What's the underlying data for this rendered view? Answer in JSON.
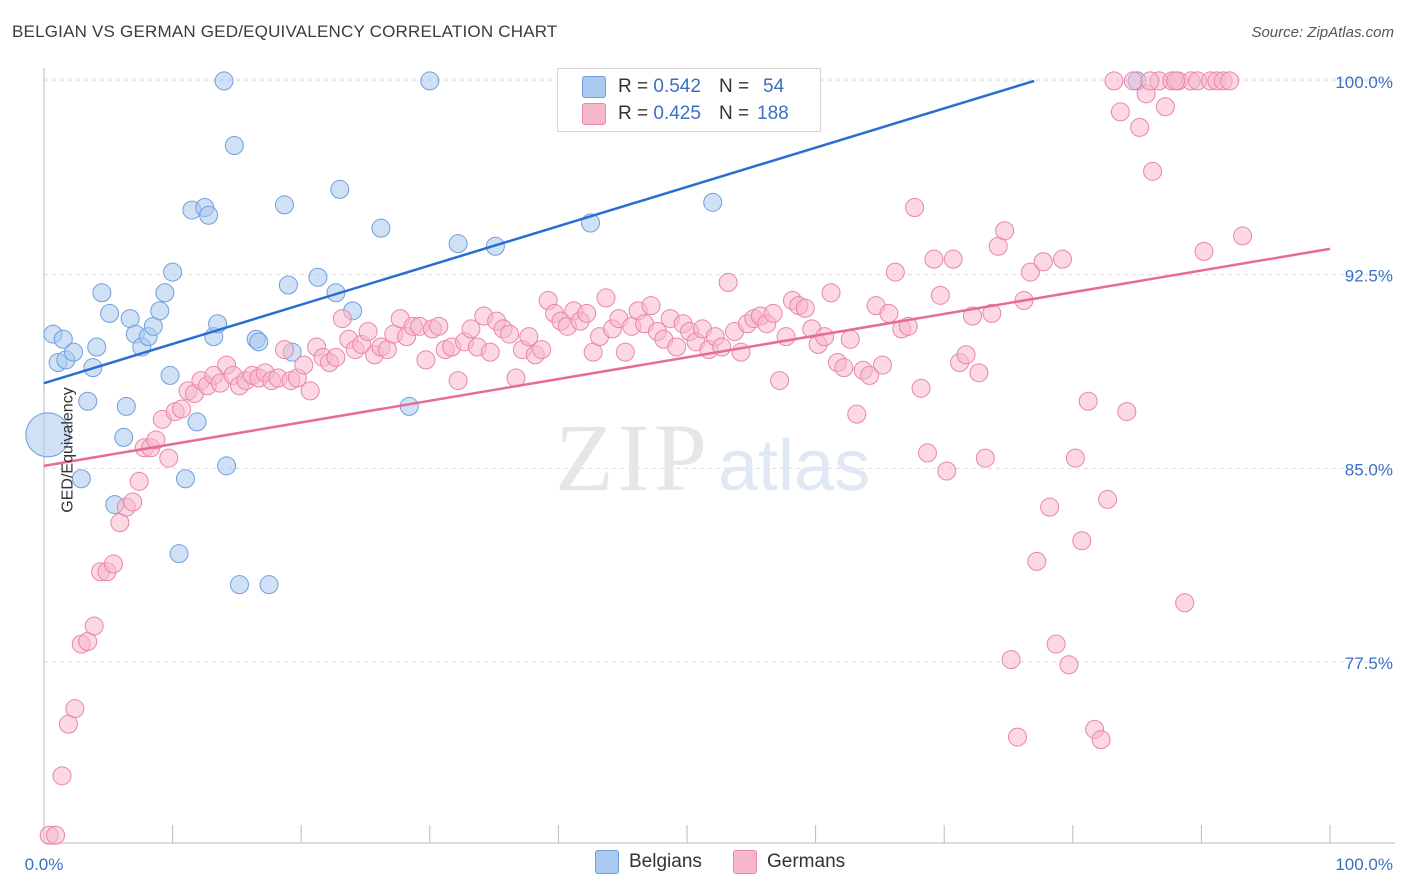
{
  "title": "BELGIAN VS GERMAN GED/EQUIVALENCY CORRELATION CHART",
  "source": "Source: ZipAtlas.com",
  "watermark": {
    "zip": "ZIP",
    "atlas": "atlas"
  },
  "legend": {
    "rows": [
      {
        "r_label": "R =",
        "r_value": "0.542",
        "n_label": "N =",
        "n_value": "54",
        "color": "#aac9ef",
        "border": "#6f9fe0"
      },
      {
        "r_label": "R =",
        "r_value": "0.425",
        "n_label": "N =",
        "n_value": "188",
        "color": "#f8b8cc",
        "border": "#ea86a6"
      }
    ]
  },
  "chart_data": {
    "type": "scatter",
    "xlabel": "",
    "ylabel": "GED/Equivalency",
    "xlim": [
      0,
      100
    ],
    "ylim": [
      70.5,
      100.5
    ],
    "x_tick_labels": [
      "0.0%",
      "100.0%"
    ],
    "y_ticks": [
      77.5,
      85.0,
      92.5,
      100.0
    ],
    "y_tick_labels": [
      "77.5%",
      "85.0%",
      "92.5%",
      "100.0%"
    ],
    "grid": true,
    "series": [
      {
        "name": "Belgians",
        "color": "#aac9ef",
        "stroke": "#6f9fe0",
        "line_color": "#2a6fd0",
        "trend": [
          [
            0,
            88.3
          ],
          [
            77,
            100.0
          ]
        ],
        "points": [
          [
            0.3,
            86.3
          ],
          [
            0.7,
            90.2
          ],
          [
            1.1,
            89.1
          ],
          [
            1.5,
            90.0
          ],
          [
            1.7,
            89.2
          ],
          [
            2.3,
            89.5
          ],
          [
            2.9,
            84.6
          ],
          [
            3.4,
            87.6
          ],
          [
            3.8,
            88.9
          ],
          [
            4.1,
            89.7
          ],
          [
            4.5,
            91.8
          ],
          [
            5.1,
            91.0
          ],
          [
            5.5,
            83.6
          ],
          [
            6.2,
            86.2
          ],
          [
            6.4,
            87.4
          ],
          [
            6.7,
            90.8
          ],
          [
            7.1,
            90.2
          ],
          [
            7.6,
            89.7
          ],
          [
            8.1,
            90.1
          ],
          [
            8.5,
            90.5
          ],
          [
            9.0,
            91.1
          ],
          [
            9.4,
            91.8
          ],
          [
            9.8,
            88.6
          ],
          [
            10.0,
            92.6
          ],
          [
            10.5,
            81.7
          ],
          [
            11.0,
            84.6
          ],
          [
            11.5,
            95.0
          ],
          [
            11.9,
            86.8
          ],
          [
            12.5,
            95.1
          ],
          [
            12.8,
            94.8
          ],
          [
            13.2,
            90.1
          ],
          [
            13.5,
            90.6
          ],
          [
            14.2,
            85.1
          ],
          [
            14.8,
            97.5
          ],
          [
            15.2,
            80.5
          ],
          [
            16.5,
            90.0
          ],
          [
            16.7,
            89.9
          ],
          [
            17.5,
            80.5
          ],
          [
            18.7,
            95.2
          ],
          [
            19.0,
            92.1
          ],
          [
            19.3,
            89.5
          ],
          [
            21.3,
            92.4
          ],
          [
            22.7,
            91.8
          ],
          [
            23.0,
            95.8
          ],
          [
            24.0,
            91.1
          ],
          [
            26.2,
            94.3
          ],
          [
            28.4,
            87.4
          ],
          [
            30.0,
            100.0
          ],
          [
            32.2,
            93.7
          ],
          [
            35.1,
            93.6
          ],
          [
            42.5,
            94.5
          ],
          [
            52.0,
            95.3
          ],
          [
            14.0,
            100.0
          ],
          [
            85.0,
            100.0
          ]
        ]
      },
      {
        "name": "Germans",
        "color": "#f8b8cc",
        "stroke": "#ea86a6",
        "line_color": "#e86a96",
        "trend": [
          [
            0,
            85.1
          ],
          [
            100,
            93.5
          ]
        ],
        "points": [
          [
            0.4,
            70.8
          ],
          [
            0.9,
            70.8
          ],
          [
            1.4,
            73.1
          ],
          [
            1.9,
            75.1
          ],
          [
            2.4,
            75.7
          ],
          [
            2.9,
            78.2
          ],
          [
            3.4,
            78.3
          ],
          [
            3.9,
            78.9
          ],
          [
            4.4,
            81.0
          ],
          [
            4.9,
            81.0
          ],
          [
            5.4,
            81.3
          ],
          [
            5.9,
            82.9
          ],
          [
            6.4,
            83.5
          ],
          [
            6.9,
            83.7
          ],
          [
            7.4,
            84.5
          ],
          [
            7.8,
            85.8
          ],
          [
            8.3,
            85.8
          ],
          [
            8.7,
            86.1
          ],
          [
            9.2,
            86.9
          ],
          [
            9.7,
            85.4
          ],
          [
            10.2,
            87.2
          ],
          [
            10.7,
            87.3
          ],
          [
            11.2,
            88.0
          ],
          [
            11.7,
            87.9
          ],
          [
            12.2,
            88.4
          ],
          [
            12.7,
            88.2
          ],
          [
            13.2,
            88.6
          ],
          [
            13.7,
            88.3
          ],
          [
            14.2,
            89.0
          ],
          [
            14.7,
            88.6
          ],
          [
            15.2,
            88.2
          ],
          [
            15.7,
            88.4
          ],
          [
            16.2,
            88.6
          ],
          [
            16.7,
            88.5
          ],
          [
            17.2,
            88.7
          ],
          [
            17.7,
            88.4
          ],
          [
            18.2,
            88.5
          ],
          [
            18.7,
            89.6
          ],
          [
            19.2,
            88.4
          ],
          [
            19.7,
            88.5
          ],
          [
            20.2,
            89.0
          ],
          [
            20.7,
            88.0
          ],
          [
            21.2,
            89.7
          ],
          [
            21.7,
            89.3
          ],
          [
            22.2,
            89.1
          ],
          [
            22.7,
            89.3
          ],
          [
            23.2,
            90.8
          ],
          [
            23.7,
            90.0
          ],
          [
            24.2,
            89.6
          ],
          [
            24.7,
            89.8
          ],
          [
            25.2,
            90.3
          ],
          [
            25.7,
            89.4
          ],
          [
            26.2,
            89.7
          ],
          [
            26.7,
            89.6
          ],
          [
            27.2,
            90.2
          ],
          [
            27.7,
            90.8
          ],
          [
            28.2,
            90.1
          ],
          [
            28.7,
            90.5
          ],
          [
            29.2,
            90.5
          ],
          [
            29.7,
            89.2
          ],
          [
            30.2,
            90.4
          ],
          [
            30.7,
            90.5
          ],
          [
            31.2,
            89.6
          ],
          [
            31.7,
            89.7
          ],
          [
            32.2,
            88.4
          ],
          [
            32.7,
            89.9
          ],
          [
            33.2,
            90.4
          ],
          [
            33.7,
            89.7
          ],
          [
            34.2,
            90.9
          ],
          [
            34.7,
            89.5
          ],
          [
            35.2,
            90.7
          ],
          [
            35.7,
            90.4
          ],
          [
            36.2,
            90.2
          ],
          [
            36.7,
            88.5
          ],
          [
            37.2,
            89.6
          ],
          [
            37.7,
            90.1
          ],
          [
            38.2,
            89.4
          ],
          [
            38.7,
            89.6
          ],
          [
            39.2,
            91.5
          ],
          [
            39.7,
            91.0
          ],
          [
            40.2,
            90.7
          ],
          [
            40.7,
            90.5
          ],
          [
            41.2,
            91.1
          ],
          [
            41.7,
            90.7
          ],
          [
            42.2,
            91.0
          ],
          [
            42.7,
            89.5
          ],
          [
            43.2,
            90.1
          ],
          [
            43.7,
            91.6
          ],
          [
            44.2,
            90.4
          ],
          [
            44.7,
            90.8
          ],
          [
            45.2,
            89.5
          ],
          [
            45.7,
            90.5
          ],
          [
            46.2,
            91.1
          ],
          [
            46.7,
            90.6
          ],
          [
            47.2,
            91.3
          ],
          [
            47.7,
            90.3
          ],
          [
            48.2,
            90.0
          ],
          [
            48.7,
            90.8
          ],
          [
            49.2,
            89.7
          ],
          [
            49.7,
            90.6
          ],
          [
            50.2,
            90.3
          ],
          [
            50.7,
            89.9
          ],
          [
            51.2,
            90.4
          ],
          [
            51.7,
            89.6
          ],
          [
            52.2,
            90.1
          ],
          [
            52.7,
            89.7
          ],
          [
            53.2,
            92.2
          ],
          [
            53.7,
            90.3
          ],
          [
            54.2,
            89.5
          ],
          [
            54.7,
            90.6
          ],
          [
            55.2,
            90.8
          ],
          [
            55.7,
            90.9
          ],
          [
            56.2,
            90.6
          ],
          [
            56.7,
            91.0
          ],
          [
            57.2,
            88.4
          ],
          [
            57.7,
            90.1
          ],
          [
            58.2,
            91.5
          ],
          [
            58.7,
            91.3
          ],
          [
            59.2,
            91.2
          ],
          [
            59.7,
            90.4
          ],
          [
            60.2,
            89.8
          ],
          [
            60.7,
            90.1
          ],
          [
            61.2,
            91.8
          ],
          [
            61.7,
            89.1
          ],
          [
            62.2,
            88.9
          ],
          [
            62.7,
            90.0
          ],
          [
            63.2,
            87.1
          ],
          [
            63.7,
            88.8
          ],
          [
            64.2,
            88.6
          ],
          [
            64.7,
            91.3
          ],
          [
            65.2,
            89.0
          ],
          [
            65.7,
            91.0
          ],
          [
            66.2,
            92.6
          ],
          [
            66.7,
            90.4
          ],
          [
            67.2,
            90.5
          ],
          [
            67.7,
            95.1
          ],
          [
            68.2,
            88.1
          ],
          [
            68.7,
            85.6
          ],
          [
            69.2,
            93.1
          ],
          [
            69.7,
            91.7
          ],
          [
            70.2,
            84.9
          ],
          [
            70.7,
            93.1
          ],
          [
            71.2,
            89.1
          ],
          [
            71.7,
            89.4
          ],
          [
            72.2,
            90.9
          ],
          [
            72.7,
            88.7
          ],
          [
            73.2,
            85.4
          ],
          [
            73.7,
            91.0
          ],
          [
            74.2,
            93.6
          ],
          [
            74.7,
            94.2
          ],
          [
            75.2,
            77.6
          ],
          [
            75.7,
            74.6
          ],
          [
            76.2,
            91.5
          ],
          [
            76.7,
            92.6
          ],
          [
            77.2,
            81.4
          ],
          [
            77.7,
            93.0
          ],
          [
            78.2,
            83.5
          ],
          [
            78.7,
            78.2
          ],
          [
            79.2,
            93.1
          ],
          [
            79.7,
            77.4
          ],
          [
            80.2,
            85.4
          ],
          [
            80.7,
            82.2
          ],
          [
            81.2,
            87.6
          ],
          [
            81.7,
            74.9
          ],
          [
            82.2,
            74.5
          ],
          [
            82.7,
            83.8
          ],
          [
            83.2,
            100.0
          ],
          [
            83.7,
            98.8
          ],
          [
            84.2,
            87.2
          ],
          [
            84.7,
            100.0
          ],
          [
            85.2,
            98.2
          ],
          [
            85.7,
            99.5
          ],
          [
            86.2,
            96.5
          ],
          [
            86.7,
            100.0
          ],
          [
            87.2,
            99.0
          ],
          [
            87.7,
            100.0
          ],
          [
            88.2,
            100.0
          ],
          [
            88.7,
            79.8
          ],
          [
            89.2,
            100.0
          ],
          [
            89.7,
            100.0
          ],
          [
            90.2,
            93.4
          ],
          [
            90.7,
            100.0
          ],
          [
            91.2,
            100.0
          ],
          [
            91.7,
            100.0
          ],
          [
            92.2,
            100.0
          ],
          [
            93.2,
            94.0
          ],
          [
            88.0,
            100.0
          ],
          [
            86.0,
            100.0
          ]
        ]
      }
    ]
  },
  "bottom_legend": [
    {
      "label": "Belgians",
      "color": "#aac9ef",
      "border": "#6f9fe0"
    },
    {
      "label": "Germans",
      "color": "#f8b8cc",
      "border": "#ea86a6"
    }
  ]
}
